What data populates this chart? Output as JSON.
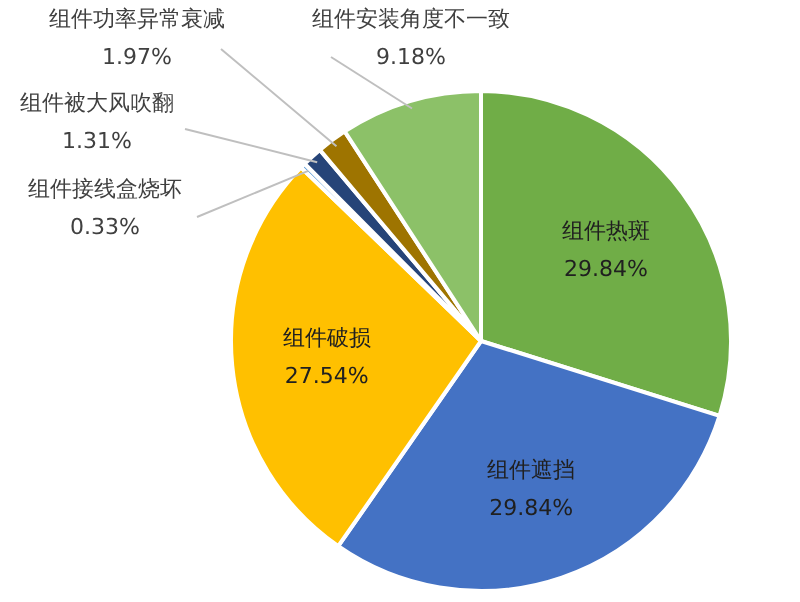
{
  "chart_data": {
    "type": "pie",
    "categories": [
      "组件热斑",
      "组件遮挡",
      "组件破损",
      "组件接线盒烧坏",
      "组件被大风吹翻",
      "组件功率异常衰减",
      "组件安装角度不一致"
    ],
    "values": [
      29.84,
      29.84,
      27.54,
      0.33,
      1.31,
      1.97,
      9.18
    ],
    "value_labels": [
      "29.84%",
      "29.84%",
      "27.54%",
      "0.33%",
      "1.31%",
      "1.97%",
      "9.18%"
    ],
    "colors": [
      "#70ad47",
      "#4472c4",
      "#ffc000",
      "#5b9bd5",
      "#264478",
      "#9e7400",
      "#8cc168"
    ]
  }
}
